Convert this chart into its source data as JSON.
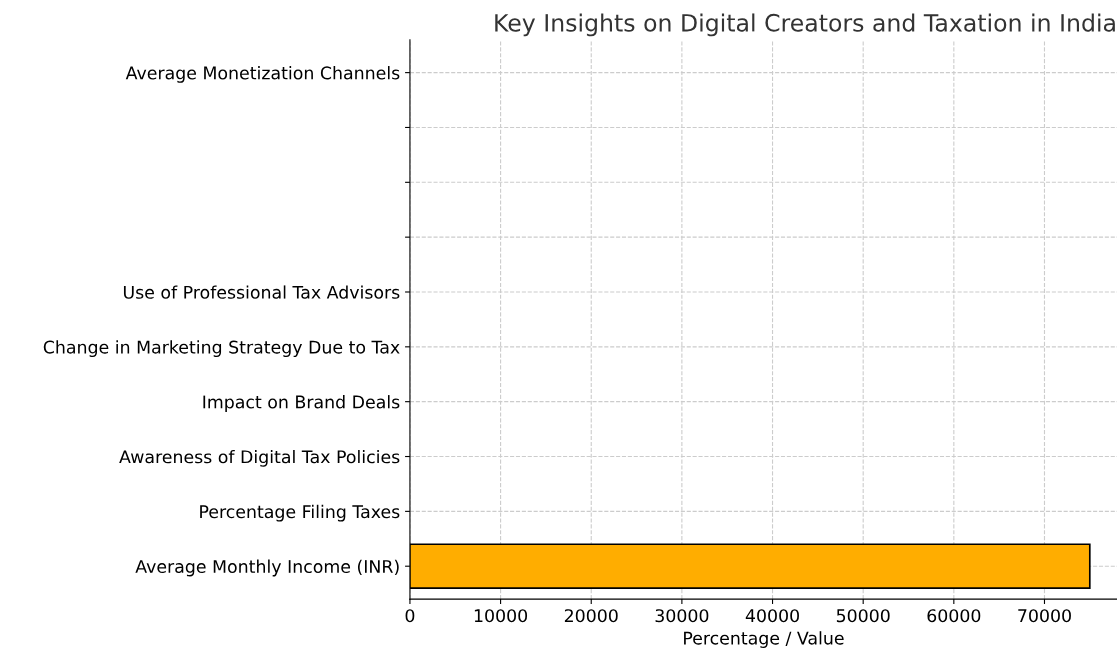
{
  "chart_data": {
    "type": "bar",
    "orientation": "horizontal",
    "title": "Key Insights on Digital Creators and Taxation in India",
    "xlabel": "Percentage / Value",
    "categories": [
      "Average Monetization Channels",
      null,
      null,
      null,
      "Use of Professional Tax Advisors",
      "Change in Marketing Strategy Due to Tax",
      "Impact on Brand Deals",
      "Awareness of Digital Tax Policies",
      "Percentage Filing Taxes",
      "Average Monthly Income (INR)"
    ],
    "values": [
      0,
      0,
      0,
      0,
      0,
      0,
      0,
      0,
      0,
      75000
    ],
    "color": "#ffad00",
    "xlim": [
      0,
      78000
    ],
    "xticks": [
      0,
      10000,
      20000,
      30000,
      40000,
      50000,
      60000,
      70000
    ],
    "grid": true,
    "line_style": "dashed"
  }
}
